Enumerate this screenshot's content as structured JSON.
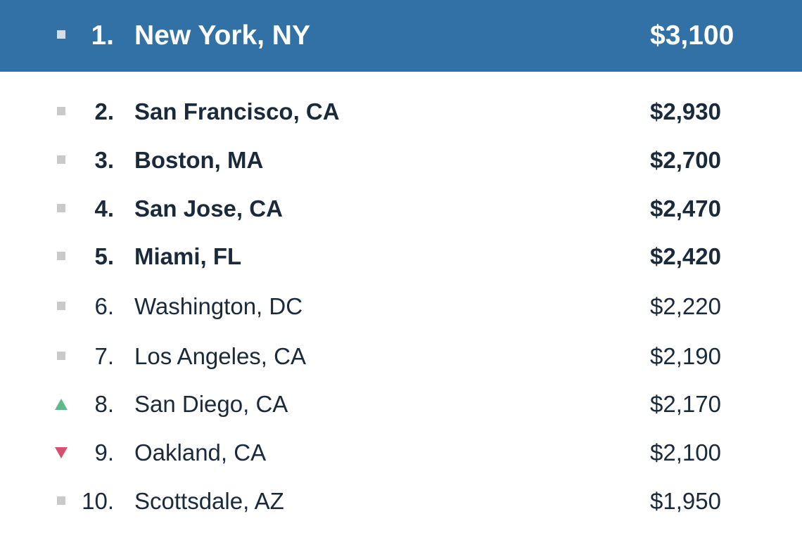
{
  "colors": {
    "header_background": "#3171a6",
    "header_text": "#ffffff",
    "text": "#1b2a3a",
    "flat_marker": "#c9c9c9",
    "up_marker": "#5dbb8a",
    "down_marker": "#d9506f"
  },
  "rankings": [
    {
      "rank": "1.",
      "city": "New York, NY",
      "rent": "$3,100",
      "trend": "flat",
      "trend_icon": "square-icon"
    },
    {
      "rank": "2.",
      "city": "San Francisco, CA",
      "rent": "$2,930",
      "trend": "flat",
      "trend_icon": "square-icon"
    },
    {
      "rank": "3.",
      "city": "Boston, MA",
      "rent": "$2,700",
      "trend": "flat",
      "trend_icon": "square-icon"
    },
    {
      "rank": "4.",
      "city": "San Jose, CA",
      "rent": "$2,470",
      "trend": "flat",
      "trend_icon": "square-icon"
    },
    {
      "rank": "5.",
      "city": "Miami, FL",
      "rent": "$2,420",
      "trend": "flat",
      "trend_icon": "square-icon"
    },
    {
      "rank": "6.",
      "city": "Washington, DC",
      "rent": "$2,220",
      "trend": "flat",
      "trend_icon": "square-icon"
    },
    {
      "rank": "7.",
      "city": "Los Angeles, CA",
      "rent": "$2,190",
      "trend": "flat",
      "trend_icon": "square-icon"
    },
    {
      "rank": "8.",
      "city": "San Diego, CA",
      "rent": "$2,170",
      "trend": "up",
      "trend_icon": "triangle-up-icon"
    },
    {
      "rank": "9.",
      "city": "Oakland, CA",
      "rent": "$2,100",
      "trend": "down",
      "trend_icon": "triangle-down-icon"
    },
    {
      "rank": "10.",
      "city": "Scottsdale, AZ",
      "rent": "$1,950",
      "trend": "flat",
      "trend_icon": "square-icon"
    }
  ]
}
